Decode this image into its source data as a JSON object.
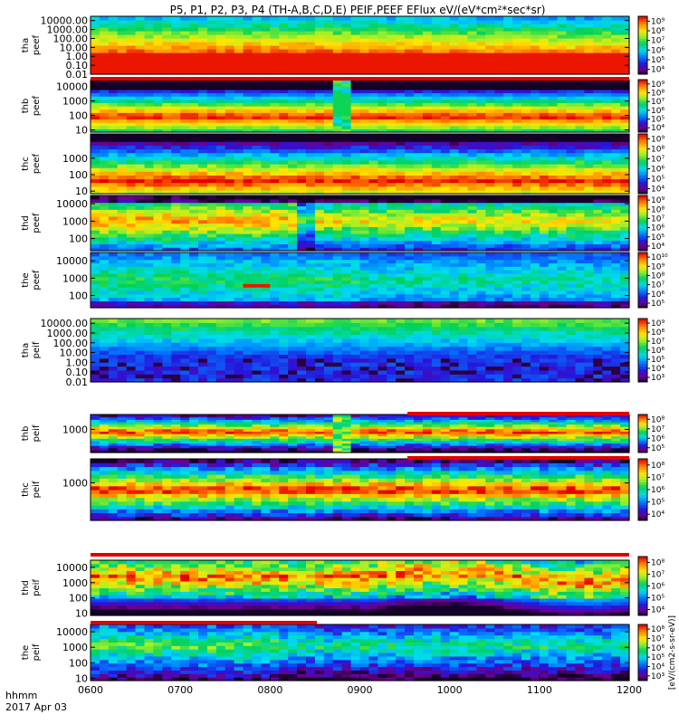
{
  "chart_data": {
    "type": "heatmap",
    "title": "P5, P1, P2, P3, P4 (TH-A,B,C,D,E) PEIF,PEEF EFlux eV/(eV*cm²*sec*sr)",
    "xlabel": "hhmm",
    "date_label": "2017 Apr 03",
    "x_ticks": [
      "0600",
      "0700",
      "0800",
      "0900",
      "1000",
      "1100",
      "1200"
    ],
    "x_range": [
      "0600",
      "1200"
    ],
    "colorbar_unit": "[eV/(cm2-s-sr-eV)]",
    "colorbar_unit_short": "eV/(cm²-s-sr-eV)",
    "panels": [
      {
        "probe": "tha",
        "product": "peef",
        "ylabel_line1": "tha",
        "ylabel_line2": "peef",
        "y_ticks": [
          "10000.00",
          "1000.00",
          "100.00",
          "10.00",
          "1.00",
          "0.10",
          "0.01"
        ],
        "y_range": [
          0.01,
          30000
        ],
        "y_scale": "log",
        "colorbar_ticks": [
          "10⁹",
          "10⁸",
          "10⁷",
          "10⁶",
          "10⁵",
          "10⁴"
        ]
      },
      {
        "probe": "thb",
        "product": "peef",
        "ylabel_line1": "thb",
        "ylabel_line2": "peef",
        "y_ticks": [
          "10000",
          "1000",
          "100",
          "10"
        ],
        "y_range": [
          7,
          30000
        ],
        "y_scale": "log",
        "colorbar_ticks": [
          "10⁹",
          "10⁸",
          "10⁷",
          "10⁶",
          "10⁵",
          "10⁴"
        ]
      },
      {
        "probe": "thc",
        "product": "peef",
        "ylabel_line1": "thc",
        "ylabel_line2": "peef",
        "y_ticks": [
          "1000",
          "100",
          "10"
        ],
        "y_range": [
          7,
          30000
        ],
        "y_scale": "log",
        "colorbar_ticks": [
          "10⁹",
          "10⁸",
          "10⁷",
          "10⁶",
          "10⁵",
          "10⁴"
        ]
      },
      {
        "probe": "thd",
        "product": "peef",
        "ylabel_line1": "thd",
        "ylabel_line2": "peef",
        "y_ticks": [
          "10000",
          "1000",
          "100"
        ],
        "y_range": [
          20,
          30000
        ],
        "y_scale": "log",
        "colorbar_ticks": [
          "10⁹",
          "10⁸",
          "10⁷",
          "10⁶",
          "10⁵",
          "10⁴"
        ]
      },
      {
        "probe": "the",
        "product": "peef",
        "ylabel_line1": "the",
        "ylabel_line2": "peef",
        "y_ticks": [
          "10000",
          "1000",
          "100"
        ],
        "y_range": [
          20,
          30000
        ],
        "y_scale": "log",
        "colorbar_ticks": [
          "10¹⁰",
          "10⁹",
          "10⁸",
          "10⁷",
          "10⁶",
          "10⁵"
        ]
      },
      {
        "probe": "tha",
        "product": "peif",
        "ylabel_line1": "tha",
        "ylabel_line2": "peif",
        "y_ticks": [
          "10000.00",
          "1000.00",
          "100.00",
          "10.00",
          "1.00",
          "0.10",
          "0.01"
        ],
        "y_range": [
          0.01,
          30000
        ],
        "y_scale": "log",
        "colorbar_ticks": [
          "10⁹",
          "10⁸",
          "10⁷",
          "10⁶",
          "10⁵",
          "10⁴",
          "10³"
        ]
      },
      {
        "probe": "thb",
        "product": "peif",
        "ylabel_line1": "thb",
        "ylabel_line2": "peif",
        "y_ticks": [
          "1000"
        ],
        "y_range": [
          5,
          30000
        ],
        "y_scale": "log",
        "colorbar_ticks": [
          "10⁸",
          "10⁷",
          "10⁶",
          "10⁵"
        ]
      },
      {
        "probe": "thc",
        "product": "peif",
        "ylabel_line1": "thc",
        "ylabel_line2": "peif",
        "y_ticks": [
          "1000"
        ],
        "y_range": [
          5,
          30000
        ],
        "y_scale": "log",
        "colorbar_ticks": [
          "10⁸",
          "10⁷",
          "10⁶",
          "10⁵",
          "10⁴"
        ]
      },
      {
        "probe": "thd",
        "product": "peif",
        "ylabel_line1": "thd",
        "ylabel_line2": "peif",
        "y_ticks": [
          "10000",
          "1000",
          "100",
          "10"
        ],
        "y_range": [
          7,
          30000
        ],
        "y_scale": "log",
        "colorbar_ticks": [
          "10⁸",
          "10⁷",
          "10⁶",
          "10⁵",
          "10⁴"
        ]
      },
      {
        "probe": "the",
        "product": "peif",
        "ylabel_line1": "the",
        "ylabel_line2": "peif",
        "y_ticks": [
          "10000",
          "1000",
          "100",
          "10"
        ],
        "y_range": [
          7,
          30000
        ],
        "y_scale": "log",
        "colorbar_ticks": [
          "10⁸",
          "10⁷",
          "10⁶",
          "10⁵",
          "10⁴",
          "10³"
        ]
      }
    ]
  }
}
